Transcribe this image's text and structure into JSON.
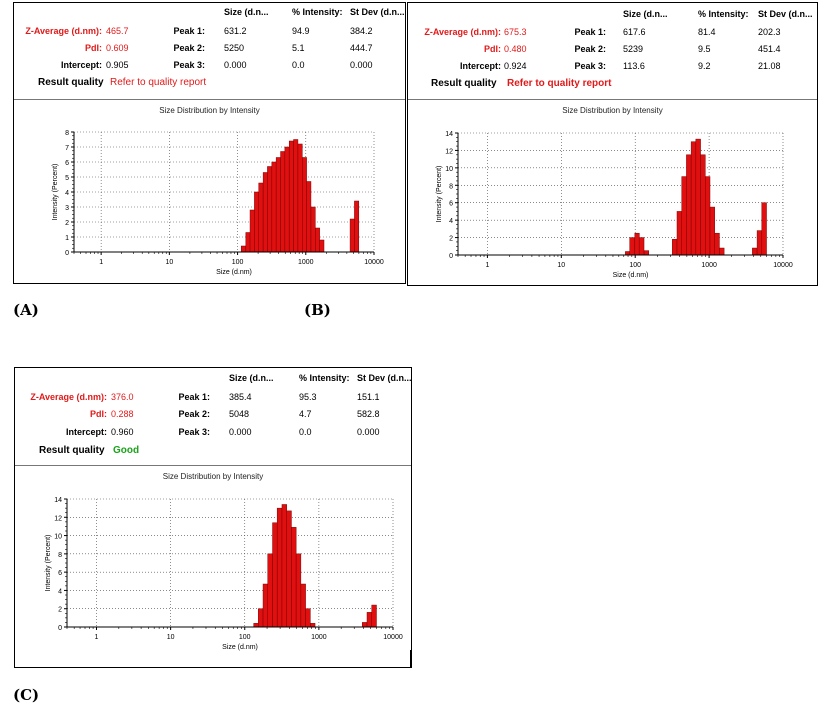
{
  "panels": {
    "A": {
      "letter": "(A)",
      "headers": {
        "size": "Size (d.n...",
        "intensity": "% Intensity:",
        "stdev": "St Dev (d.n..."
      },
      "zavg_label": "Z-Average (d.nm):",
      "zavg": "465.7",
      "pdi_label": "PdI:",
      "pdi": "0.609",
      "intercept_label": "Intercept:",
      "intercept": "0.905",
      "result_label": "Result quality",
      "result": "Refer to quality report",
      "peaks": [
        {
          "label": "Peak 1:",
          "size": "631.2",
          "intensity": "94.9",
          "stdev": "384.2"
        },
        {
          "label": "Peak 2:",
          "size": "5250",
          "intensity": "5.1",
          "stdev": "444.7"
        },
        {
          "label": "Peak 3:",
          "size": "0.000",
          "intensity": "0.0",
          "stdev": "0.000"
        }
      ]
    },
    "B": {
      "letter": "(B)",
      "headers": {
        "size": "Size (d.n...",
        "intensity": "% Intensity:",
        "stdev": "St Dev (d.n..."
      },
      "zavg_label": "Z-Average (d.nm):",
      "zavg": "675.3",
      "pdi_label": "PdI:",
      "pdi": "0.480",
      "intercept_label": "Intercept:",
      "intercept": "0.924",
      "result_label": "Result quality",
      "result": "Refer to quality report",
      "peaks": [
        {
          "label": "Peak 1:",
          "size": "617.6",
          "intensity": "81.4",
          "stdev": "202.3"
        },
        {
          "label": "Peak 2:",
          "size": "5239",
          "intensity": "9.5",
          "stdev": "451.4"
        },
        {
          "label": "Peak 3:",
          "size": "113.6",
          "intensity": "9.2",
          "stdev": "21.08"
        }
      ]
    },
    "C": {
      "letter": "(C)",
      "headers": {
        "size": "Size (d.n...",
        "intensity": "% Intensity:",
        "stdev": "St Dev (d.n..."
      },
      "zavg_label": "Z-Average (d.nm):",
      "zavg": "376.0",
      "pdi_label": "PdI:",
      "pdi": "0.288",
      "intercept_label": "Intercept:",
      "intercept": "0.960",
      "result_label": "Result quality",
      "result": "Good",
      "peaks": [
        {
          "label": "Peak 1:",
          "size": "385.4",
          "intensity": "95.3",
          "stdev": "151.1"
        },
        {
          "label": "Peak 2:",
          "size": "5048",
          "intensity": "4.7",
          "stdev": "582.8"
        },
        {
          "label": "Peak 3:",
          "size": "0.000",
          "intensity": "0.0",
          "stdev": "0.000"
        }
      ]
    }
  },
  "colors": {
    "bar": "#e01010",
    "bar_edge": "#7a0000",
    "grid": "#444444",
    "label_red": "#e01a1a",
    "label_green": "#1aa31a"
  },
  "chart_data": [
    {
      "type": "bar",
      "title": "Size Distribution by Intensity",
      "xlabel": "Size (d.nm)",
      "ylabel": "Intensity (Percent)",
      "xscale": "log",
      "xlim": [
        0.4,
        10000
      ],
      "ylim": [
        0,
        8
      ],
      "xticks": [
        1,
        10,
        100,
        1000,
        10000
      ],
      "yticks": [
        0,
        1,
        2,
        3,
        4,
        5,
        6,
        7,
        8
      ],
      "grid": true,
      "x": [
        122,
        142,
        164,
        190,
        220,
        255,
        295,
        342,
        396,
        459,
        531,
        615,
        712,
        825,
        955,
        1106,
        1281,
        1484,
        1718,
        1990,
        2305,
        2669,
        3091,
        3580,
        4145,
        4801,
        5560
      ],
      "values": [
        0.4,
        1.3,
        2.8,
        4.0,
        4.6,
        5.3,
        5.7,
        6.0,
        6.3,
        6.7,
        7.0,
        7.4,
        7.5,
        7.2,
        6.3,
        4.7,
        3.0,
        1.6,
        0.8,
        0,
        0,
        0,
        0,
        0,
        0,
        2.2,
        3.4
      ]
    },
    {
      "type": "bar",
      "title": "Size Distribution by Intensity",
      "xlabel": "Size (d.nm)",
      "ylabel": "Intensity (Percent)",
      "xscale": "log",
      "xlim": [
        0.4,
        10000
      ],
      "ylim": [
        0,
        14
      ],
      "xticks": [
        1,
        10,
        100,
        1000,
        10000
      ],
      "yticks": [
        0,
        2,
        4,
        6,
        8,
        10,
        12,
        14
      ],
      "grid": true,
      "x": [
        79,
        91,
        106,
        122,
        142,
        164,
        190,
        220,
        255,
        295,
        342,
        396,
        459,
        531,
        615,
        712,
        825,
        955,
        1106,
        1281,
        1484,
        1718,
        1990,
        2305,
        2669,
        3091,
        3580,
        4145,
        4801,
        5560
      ],
      "values": [
        0.4,
        2.0,
        2.5,
        2.0,
        0.5,
        0,
        0,
        0,
        0,
        0,
        1.8,
        5.0,
        9.0,
        11.5,
        13.0,
        13.3,
        11.5,
        9.0,
        5.5,
        2.5,
        0.8,
        0,
        0,
        0,
        0,
        0,
        0,
        0.8,
        2.8,
        6.0
      ]
    },
    {
      "type": "bar",
      "title": "Size Distribution by Intensity",
      "xlabel": "Size (d.nm)",
      "ylabel": "Intensity (Percent)",
      "xscale": "log",
      "xlim": [
        0.4,
        10000
      ],
      "ylim": [
        0,
        14
      ],
      "xticks": [
        1,
        10,
        100,
        1000,
        10000
      ],
      "yticks": [
        0,
        2,
        4,
        6,
        8,
        10,
        12,
        14
      ],
      "grid": true,
      "x": [
        142,
        164,
        190,
        220,
        255,
        295,
        342,
        396,
        459,
        531,
        615,
        712,
        825,
        955,
        1106,
        1281,
        1484,
        1718,
        1990,
        2305,
        2669,
        3091,
        3580,
        4145,
        4801,
        5560
      ],
      "values": [
        0.4,
        2.0,
        4.7,
        8.0,
        11.4,
        13.0,
        13.4,
        12.7,
        10.9,
        8.0,
        4.7,
        2.0,
        0.4,
        0,
        0,
        0,
        0,
        0,
        0,
        0,
        0,
        0,
        0,
        0.5,
        1.6,
        2.4
      ]
    }
  ]
}
